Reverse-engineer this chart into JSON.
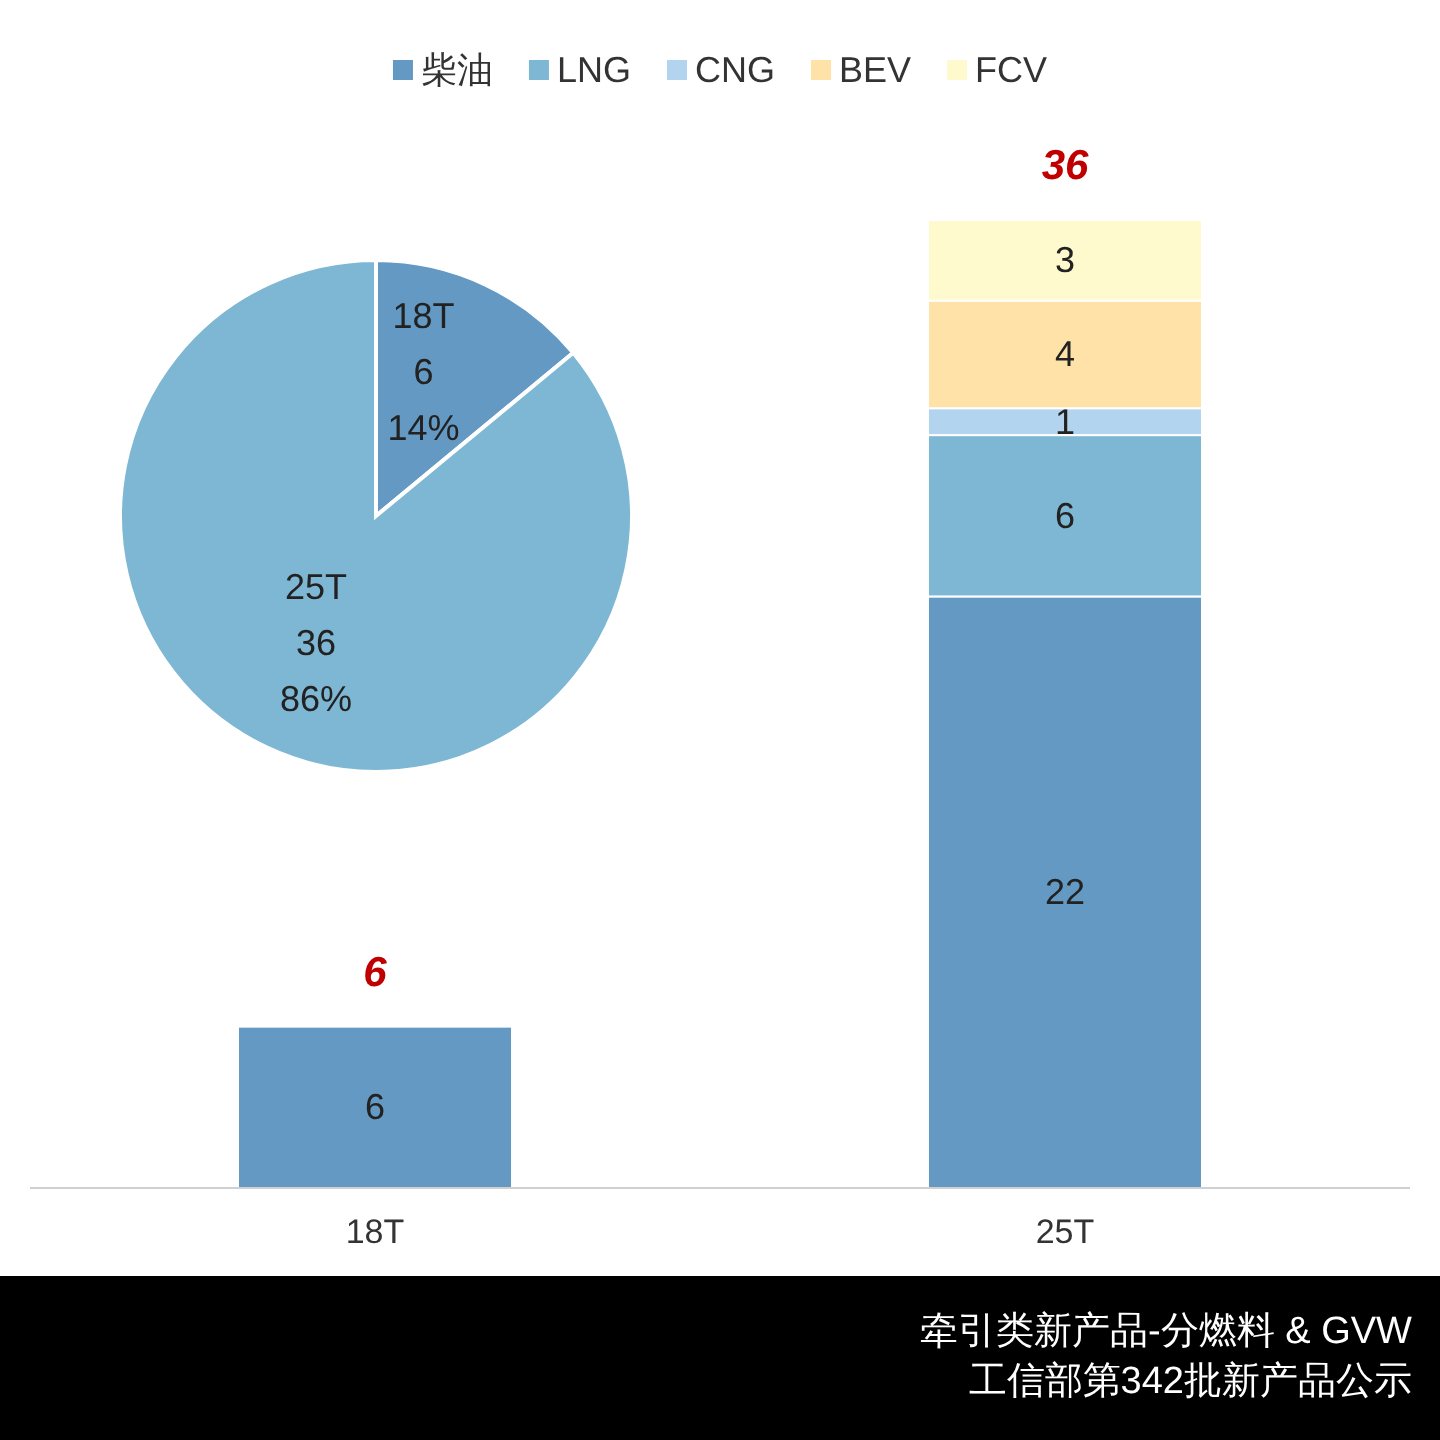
{
  "chart_data": [
    {
      "type": "pie",
      "categories": [
        "18T",
        "25T"
      ],
      "values": [
        14,
        86
      ],
      "colors": [
        "#6399c3",
        "#7eb7d3"
      ],
      "value_labels": [
        "6\n14%",
        "36\n86%"
      ]
    },
    {
      "type": "bar",
      "stacked": true,
      "categories": [
        "18T",
        "25T"
      ],
      "series": [
        {
          "name": "柴油",
          "color": "#6399c3",
          "values": [
            6,
            22
          ]
        },
        {
          "name": "LNG",
          "color": "#7eb7d3",
          "values": [
            null,
            6
          ]
        },
        {
          "name": "CNG",
          "color": "#b3d4ee",
          "values": [
            null,
            1
          ]
        },
        {
          "name": "BEV",
          "color": "#fee2a8",
          "values": [
            null,
            4
          ]
        },
        {
          "name": "FCV",
          "color": "#fffacd",
          "values": [
            null,
            3
          ]
        }
      ],
      "data_labels": true,
      "totals": [
        "6",
        "36"
      ],
      "legend": "top",
      "annotations": [
        "牵引类新产品-分燃料 & GVW",
        "工信部第342批新产品公示"
      ]
    }
  ]
}
